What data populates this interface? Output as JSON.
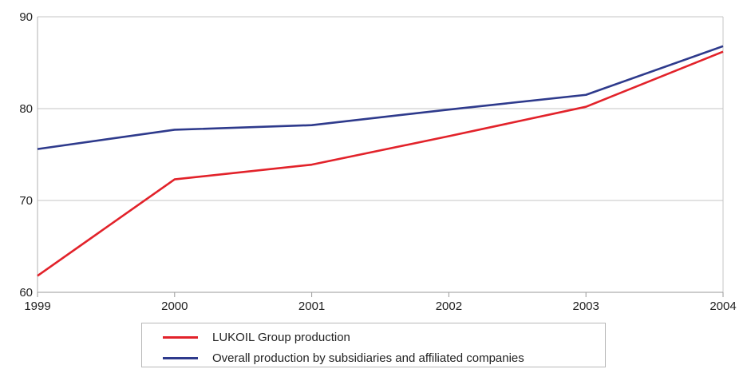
{
  "chart_data": {
    "type": "line",
    "title": "",
    "xlabel": "",
    "ylabel": "",
    "x": [
      "1999",
      "2000",
      "2001",
      "2002",
      "2003",
      "2004"
    ],
    "ylim": [
      60,
      90
    ],
    "yticks": [
      "60",
      "70",
      "80",
      "90"
    ],
    "grid": true,
    "legend_position": "bottom",
    "series": [
      {
        "name": "LUKOIL Group production",
        "color": "#e2222a",
        "values": [
          61.8,
          72.3,
          73.9,
          77.0,
          80.2,
          86.2
        ]
      },
      {
        "name": "Overall production by subsidiaries and affiliated companies",
        "color": "#2e3a8c",
        "values": [
          75.6,
          77.7,
          78.2,
          79.9,
          81.5,
          86.8
        ]
      }
    ]
  }
}
